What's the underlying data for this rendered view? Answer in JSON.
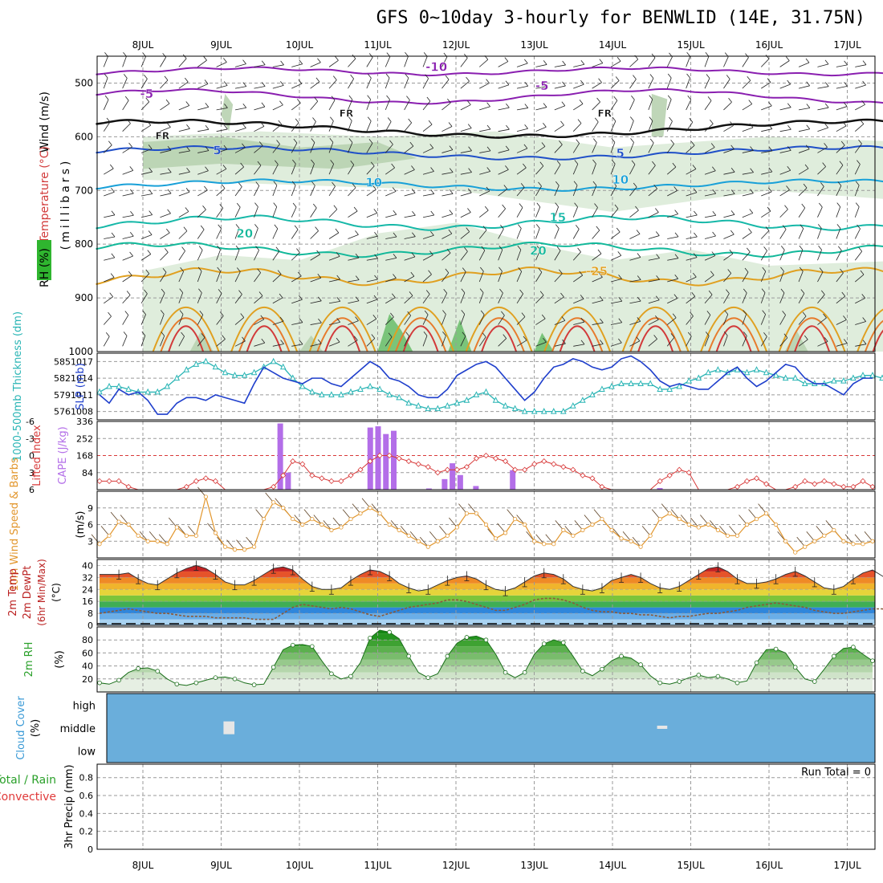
{
  "title": "GFS 0~10day 3-hourly for BENWLID (14E, 31.75N)",
  "colors": {
    "grid": "#9a9a9a",
    "temp_cold": "#8a1fb0",
    "temp_fr": "#111111",
    "temp_cool": "#1f4fc8",
    "temp_mild": "#18a0d8",
    "temp_warm": "#16b8a8",
    "temp_hot": "#e0a020",
    "temp_vhot": "#d23a3a",
    "rh_light": "#dcebd8",
    "rh_mid": "#b8d2b0",
    "rh_dark": "#6fbf6f",
    "slp": "#1f3fcc",
    "thickness": "#2ab5b5",
    "lifted": "#d83a3a",
    "cape": "#b36ee8",
    "wind_speed": "#e2962c",
    "barb": "#5a3e20",
    "rh2m": "#2aa02a",
    "cloud_bg": "#6aaedb",
    "cloud_patch": "#e6e6e6",
    "precip_total": "#2aa02a",
    "precip_conv": "#e03a3a"
  },
  "chart_data": [
    {
      "panel": "upper_air",
      "type": "contour",
      "x_labels": [
        "8JUL",
        "9JUL",
        "10JUL",
        "11JUL",
        "12JUL",
        "13JUL",
        "14JUL",
        "15JUL",
        "16JUL",
        "17JUL"
      ],
      "xlim": [
        0,
        9.85
      ],
      "ylabel": "(millibars)",
      "ylabel_wind": "Wind (m/s)",
      "ylabel_temp": "Temperature (°C)",
      "ylabel_rh": "RH (%)",
      "y_ticks": [
        500,
        600,
        700,
        800,
        900,
        1000
      ],
      "ylim": [
        450,
        1000
      ],
      "contour_labels": [
        {
          "label": "-10",
          "day": 3.75,
          "p": 478
        },
        {
          "label": "-5",
          "day": 0.05,
          "p": 528
        },
        {
          "label": "-5",
          "day": 5.1,
          "p": 513
        },
        {
          "label": "FR",
          "day": 0.25,
          "p": 605
        },
        {
          "label": "FR",
          "day": 2.6,
          "p": 563
        },
        {
          "label": "FR",
          "day": 5.9,
          "p": 563
        },
        {
          "label": "5",
          "day": 0.95,
          "p": 633
        },
        {
          "label": "5",
          "day": 6.1,
          "p": 638
        },
        {
          "label": "10",
          "day": 2.95,
          "p": 693
        },
        {
          "label": "10",
          "day": 6.1,
          "p": 688
        },
        {
          "label": "15",
          "day": 5.3,
          "p": 758
        },
        {
          "label": "20",
          "day": 1.3,
          "p": 788
        },
        {
          "label": "20",
          "day": 5.05,
          "p": 820
        },
        {
          "label": "-25",
          "day": 5.8,
          "p": 858
        }
      ]
    },
    {
      "panel": "slp_thickness",
      "type": "line",
      "series": [
        {
          "name": "SLP (mb)",
          "values": [
            1011,
            1009.5,
            1012,
            1011,
            1011.5,
            1010,
            1007.5,
            1007.5,
            1009.5,
            1010.5,
            1010.5,
            1010,
            1011,
            1010.5,
            1010,
            1009.5,
            1013,
            1016,
            1015,
            1014,
            1013.5,
            1013,
            1014,
            1014,
            1013,
            1012.5,
            1014,
            1015.5,
            1017,
            1016,
            1014,
            1013.5,
            1012.5,
            1011,
            1010.5,
            1010.5,
            1012,
            1014.5,
            1015.5,
            1016.5,
            1017,
            1016,
            1014,
            1012,
            1010,
            1011.5,
            1014,
            1016,
            1016.5,
            1017.5,
            1017,
            1016,
            1015.5,
            1016,
            1017.5,
            1018,
            1017,
            1015.5,
            1013.5,
            1012.5,
            1013,
            1012.5,
            1012,
            1012,
            1013.5,
            1015,
            1016,
            1014,
            1012.5,
            1013.5,
            1015,
            1016.5,
            1016,
            1014,
            1013,
            1013,
            1012,
            1011,
            1013,
            1014,
            1014
          ]
        },
        {
          "name": "Thickness 1000-500mb (dm)",
          "values": [
            579.5,
            580.5,
            580.5,
            580,
            579.5,
            579.5,
            579.5,
            580.5,
            582,
            583.5,
            584.5,
            585,
            584,
            583,
            582.5,
            582.5,
            583,
            584,
            585,
            584,
            582,
            580.5,
            579.5,
            579,
            579,
            579,
            579.5,
            580,
            580.5,
            580,
            579,
            578.5,
            577.5,
            577,
            576.5,
            576.5,
            577,
            577.5,
            578,
            579,
            579.5,
            578,
            577,
            576.5,
            576,
            576,
            576,
            576,
            576,
            577,
            578,
            579,
            580,
            580.5,
            581,
            581,
            581,
            581,
            580,
            580,
            580.5,
            581.5,
            582,
            583,
            583.5,
            583,
            583.5,
            583,
            583.5,
            583,
            582.5,
            582,
            582,
            581,
            581,
            581,
            581.5,
            581.5,
            582,
            582.5,
            582.5,
            582,
            581,
            580,
            579.5
          ]
        }
      ],
      "y_left_ticks": [
        576,
        579,
        582,
        585
      ],
      "y_right_ticks": [
        1008,
        1011,
        1014,
        1017
      ],
      "ylim_left": [
        574.5,
        586.5
      ],
      "ylim_right": [
        1006.5,
        1018.5
      ],
      "ylabel_left": "1000-500mb Thickness (dm)",
      "ylabel_right": "SLP (mb)"
    },
    {
      "panel": "lifted_cape",
      "type": "bar+line",
      "series": [
        {
          "name": "Lifted Index",
          "values": [
            4.5,
            4.5,
            4.5,
            5.5,
            6,
            6,
            6,
            6,
            6,
            5.5,
            4.5,
            4,
            4.5,
            6,
            6,
            6,
            6,
            6,
            5.5,
            3.5,
            1,
            1.5,
            3.5,
            4,
            4.5,
            4.5,
            3.5,
            2.5,
            1,
            0,
            0,
            0.5,
            1,
            1.5,
            2,
            3,
            2.5,
            2.5,
            2,
            0.5,
            0,
            0.5,
            1,
            2.5,
            2.5,
            1.5,
            1,
            1.5,
            2,
            2.5,
            3.5,
            4,
            5.5,
            6,
            6,
            6,
            6,
            6,
            4.5,
            3.5,
            2.5,
            3,
            6,
            6,
            6,
            6,
            5.5,
            4.5,
            4,
            5,
            6,
            6,
            5.5,
            4.5,
            5,
            4.5,
            5,
            5.5,
            5.5,
            4.5,
            5.5
          ]
        },
        {
          "name": "CAPE (J/kg)",
          "values": [
            [
              9.75,
              326
            ],
            [
              9.85,
              84
            ],
            [
              10.9,
              306
            ],
            [
              11.0,
              312
            ],
            [
              11.1,
              274
            ],
            [
              11.2,
              290
            ],
            [
              11.65,
              6
            ],
            [
              11.85,
              52
            ],
            [
              11.95,
              130
            ],
            [
              12.05,
              72
            ],
            [
              12.25,
              18
            ],
            [
              12.72,
              96
            ],
            [
              14.6,
              8
            ]
          ]
        }
      ],
      "y_left_ticks": [
        -6,
        -3,
        0,
        3,
        6
      ],
      "y_right_ticks": [
        84,
        168,
        252,
        336
      ],
      "ylim_left": [
        -6,
        6
      ],
      "ylim_right": [
        0,
        336
      ],
      "ylabel_left": "Lifted Index",
      "ylabel_right": "CAPE (J/kg)"
    },
    {
      "panel": "wind10m",
      "type": "line",
      "series": [
        {
          "name": "10m Wind Speed (m/s)",
          "values": [
            2.5,
            4,
            6.5,
            6,
            4,
            3,
            3,
            2.5,
            5.5,
            4,
            4,
            11,
            4.5,
            2,
            1.5,
            1.5,
            2,
            7,
            10,
            9,
            7,
            6,
            7,
            6,
            5,
            5.5,
            7,
            8,
            9,
            8,
            6,
            5,
            4,
            3,
            2,
            3,
            4,
            5.5,
            8,
            8,
            6,
            3.5,
            4.5,
            7,
            6,
            3,
            2.5,
            2.5,
            5,
            4,
            5,
            6,
            7,
            5,
            3.5,
            3,
            2,
            4,
            7,
            8,
            7,
            6,
            5.5,
            6,
            5,
            4,
            4,
            6,
            7,
            8,
            6,
            3,
            1,
            2,
            3,
            4,
            5,
            3,
            2.5,
            2.5,
            3
          ]
        }
      ],
      "y_ticks": [
        3,
        6,
        9
      ],
      "ylim": [
        0,
        12
      ],
      "ylabel_left": "10m Wind Speed & Barbs",
      "ylabel_units": "(m/s)"
    },
    {
      "panel": "temp2m",
      "type": "area",
      "series": [
        {
          "name": "2m Temp (°C)",
          "values": [
            34,
            34,
            34,
            35,
            31,
            28,
            27,
            31,
            35,
            38,
            40,
            38,
            34,
            29,
            27,
            27,
            30,
            34,
            38,
            39,
            37,
            31,
            26,
            24,
            24,
            25,
            30,
            34,
            37,
            36,
            33,
            28,
            25,
            23,
            24,
            27,
            30,
            32,
            33,
            31,
            27,
            24,
            23,
            25,
            29,
            33,
            35,
            34,
            31,
            26,
            24,
            23,
            25,
            30,
            32,
            34,
            32,
            28,
            25,
            24,
            26,
            30,
            34,
            38,
            39,
            36,
            31,
            28,
            28,
            29,
            31,
            34,
            36,
            33,
            29,
            25,
            24,
            26,
            31,
            35,
            37,
            33,
            29,
            26,
            25
          ]
        },
        {
          "name": "2m DewPt (°C)",
          "values": [
            8,
            9,
            10,
            11,
            10,
            9,
            8,
            8,
            7,
            6,
            6,
            6,
            5,
            5,
            5,
            5,
            4,
            4,
            4,
            8,
            12,
            14,
            13,
            12,
            11,
            12,
            11,
            9,
            7,
            6,
            8,
            10,
            12,
            13,
            14,
            15,
            17,
            17,
            16,
            14,
            12,
            10,
            10,
            12,
            14,
            17,
            18,
            18,
            17,
            15,
            12,
            10,
            9,
            9,
            8,
            8,
            7,
            7,
            6,
            5,
            6,
            6,
            7,
            8,
            8,
            9,
            10,
            12,
            13,
            14,
            15,
            14,
            13,
            12,
            10,
            9,
            8,
            8,
            9,
            10,
            11,
            11,
            10,
            10,
            10
          ]
        }
      ],
      "y_ticks": [
        0,
        8,
        16,
        24,
        32,
        40
      ],
      "ylim": [
        0,
        44
      ],
      "ylabel": "2m Temp / 2m DewPt (6hr Min/Max) (°C)"
    },
    {
      "panel": "rh2m",
      "type": "area",
      "series": [
        {
          "name": "2m RH (%)",
          "values": [
            14,
            12,
            18,
            30,
            36,
            37,
            32,
            20,
            12,
            10,
            14,
            18,
            22,
            23,
            20,
            14,
            11,
            12,
            38,
            65,
            72,
            73,
            70,
            48,
            28,
            20,
            24,
            45,
            83,
            95,
            92,
            82,
            55,
            30,
            22,
            28,
            55,
            75,
            84,
            86,
            80,
            58,
            30,
            22,
            30,
            58,
            74,
            80,
            76,
            55,
            32,
            25,
            35,
            48,
            55,
            52,
            42,
            25,
            14,
            12,
            16,
            22,
            26,
            22,
            24,
            20,
            14,
            17,
            45,
            65,
            66,
            60,
            38,
            20,
            16,
            35,
            55,
            67,
            69,
            58,
            48
          ]
        }
      ],
      "y_ticks": [
        20,
        40,
        60,
        80
      ],
      "ylim": [
        0,
        100
      ],
      "ylabel": "2m RH (%)"
    },
    {
      "panel": "cloud_cover",
      "type": "heatmap",
      "rows": [
        "high",
        "middle",
        "low"
      ],
      "ylabel": "Cloud Cover (%)",
      "patches": [
        {
          "day_start": 1.03,
          "day_end": 1.17,
          "level": "middle"
        },
        {
          "day_start": 6.57,
          "day_end": 6.7,
          "level": "middle_thin"
        }
      ]
    },
    {
      "panel": "precip",
      "type": "bar",
      "ylabel": "3hr Precip (mm)",
      "legend": [
        "Total / Rain",
        "Convective"
      ],
      "run_total_label": "Run Total = 0",
      "values": [],
      "y_ticks": [
        0,
        0.2,
        0.4,
        0.6,
        0.8
      ],
      "ylim": [
        0,
        0.95
      ]
    }
  ]
}
